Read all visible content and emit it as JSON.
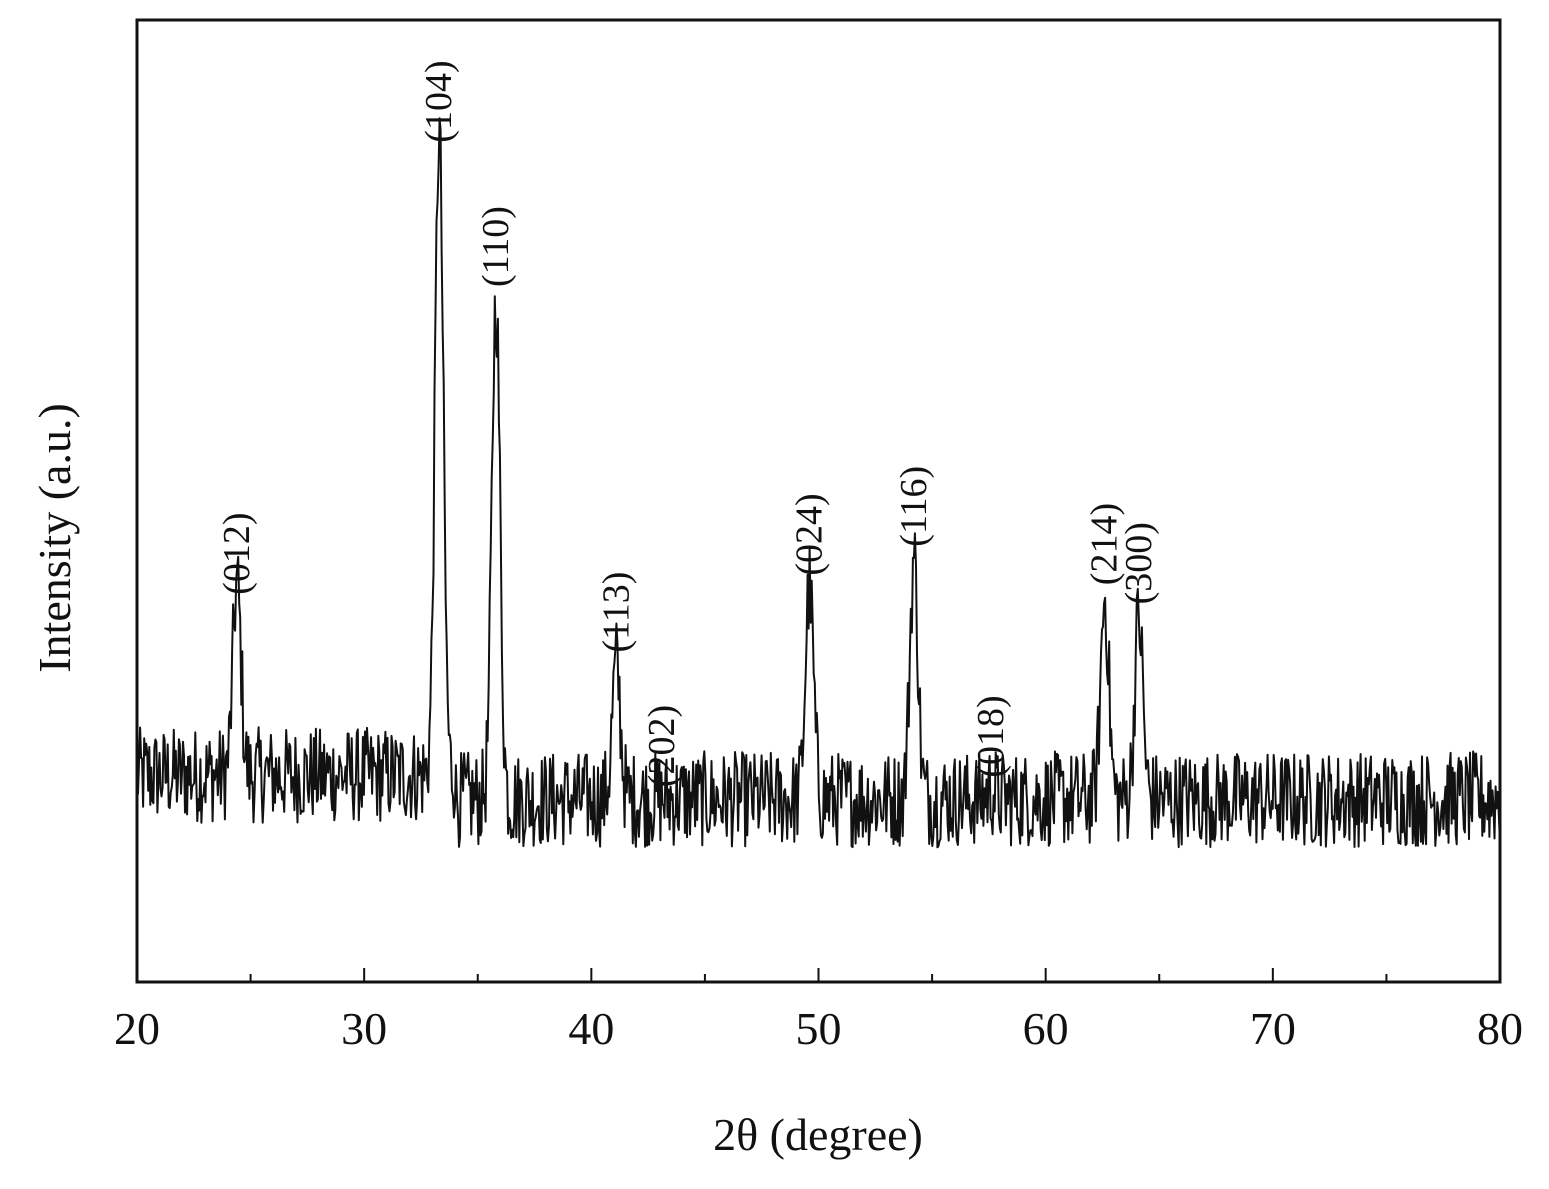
{
  "chart_data": {
    "type": "line",
    "title": "",
    "xlabel": "2θ (degree)",
    "ylabel": "Intensity (a.u.)",
    "xlim": [
      20,
      80
    ],
    "ylim": [
      0,
      100
    ],
    "y_ticks_shown": false,
    "grid": false,
    "legend": "none",
    "line_color": "#111111",
    "x_ticks": [
      20,
      30,
      40,
      50,
      60,
      70,
      80
    ],
    "x_tick_labels": [
      "20",
      "30",
      "40",
      "50",
      "60",
      "70",
      "80"
    ],
    "baseline": 19,
    "noise_amplitude": 5,
    "peaks": [
      {
        "label": "(012)",
        "two_theta": 24.4,
        "intensity": 39
      },
      {
        "label": "(104)",
        "two_theta": 33.3,
        "intensity": 86
      },
      {
        "label": "(110)",
        "two_theta": 35.8,
        "intensity": 71
      },
      {
        "label": "(113)",
        "two_theta": 41.1,
        "intensity": 33
      },
      {
        "label": "(202)",
        "two_theta": 43.1,
        "intensity": 19
      },
      {
        "label": "(024)",
        "two_theta": 49.6,
        "intensity": 41
      },
      {
        "label": "(116)",
        "two_theta": 54.2,
        "intensity": 44
      },
      {
        "label": "(018)",
        "two_theta": 57.6,
        "intensity": 20
      },
      {
        "label": "(214)",
        "two_theta": 62.6,
        "intensity": 40
      },
      {
        "label": "(300)",
        "two_theta": 64.1,
        "intensity": 38
      }
    ]
  }
}
